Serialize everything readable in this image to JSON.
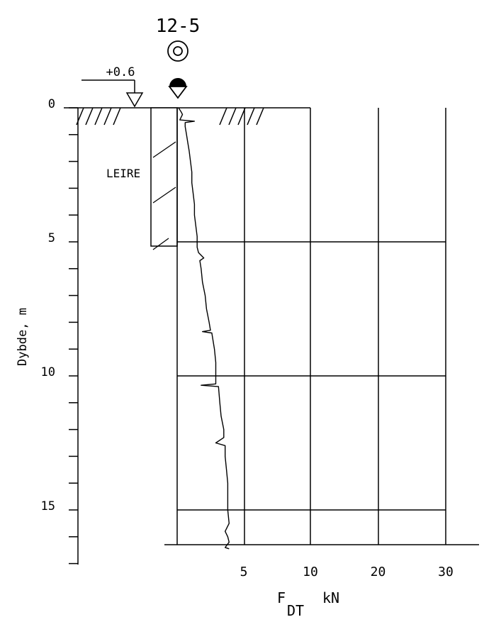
{
  "borehole": {
    "id": "12-5",
    "ground_level": "+0.6",
    "soil_label": "LEIRE"
  },
  "chart_data": {
    "type": "line",
    "ylabel": "Dybde, m",
    "xlabel_main": "F",
    "xlabel_sub": "DT",
    "xlabel_unit": "kN",
    "y_ticks": [
      "0",
      "5",
      "10",
      "15"
    ],
    "x_ticks": [
      "5",
      "10",
      "20",
      "30"
    ],
    "ylim": [
      0,
      16.5
    ],
    "x_scale": "piecewise: 0–10 kN over first two columns, 10–30 kN over last two columns",
    "series": [
      {
        "points": [
          [
            0.0,
            0.1
          ],
          [
            0.15,
            0.3
          ],
          [
            0.25,
            0.4
          ],
          [
            0.45,
            0.2
          ],
          [
            0.5,
            1.3
          ],
          [
            0.55,
            0.6
          ],
          [
            0.7,
            0.6
          ],
          [
            1.0,
            0.7
          ],
          [
            1.3,
            0.8
          ],
          [
            1.6,
            0.9
          ],
          [
            2.0,
            1.0
          ],
          [
            2.4,
            1.1
          ],
          [
            2.8,
            1.1
          ],
          [
            3.2,
            1.2
          ],
          [
            3.6,
            1.3
          ],
          [
            4.0,
            1.3
          ],
          [
            4.4,
            1.4
          ],
          [
            4.8,
            1.5
          ],
          [
            5.2,
            1.5
          ],
          [
            5.4,
            1.6
          ],
          [
            5.6,
            2.0
          ],
          [
            5.7,
            1.7
          ],
          [
            6.0,
            1.8
          ],
          [
            6.5,
            1.9
          ],
          [
            7.0,
            2.1
          ],
          [
            7.5,
            2.2
          ],
          [
            8.0,
            2.4
          ],
          [
            8.3,
            2.5
          ],
          [
            8.35,
            1.9
          ],
          [
            8.4,
            2.6
          ],
          [
            9.0,
            2.8
          ],
          [
            9.5,
            2.9
          ],
          [
            10.0,
            2.9
          ],
          [
            10.3,
            2.9
          ],
          [
            10.35,
            1.8
          ],
          [
            10.4,
            3.1
          ],
          [
            11.0,
            3.2
          ],
          [
            11.5,
            3.3
          ],
          [
            12.0,
            3.5
          ],
          [
            12.3,
            3.5
          ],
          [
            12.5,
            2.9
          ],
          [
            12.6,
            3.6
          ],
          [
            13.0,
            3.6
          ],
          [
            13.5,
            3.7
          ],
          [
            14.0,
            3.8
          ],
          [
            14.5,
            3.8
          ],
          [
            15.0,
            3.8
          ],
          [
            15.5,
            3.9
          ],
          [
            15.8,
            3.6
          ],
          [
            16.0,
            3.8
          ],
          [
            16.2,
            3.9
          ],
          [
            16.4,
            3.6
          ],
          [
            16.45,
            3.9
          ]
        ]
      }
    ]
  }
}
